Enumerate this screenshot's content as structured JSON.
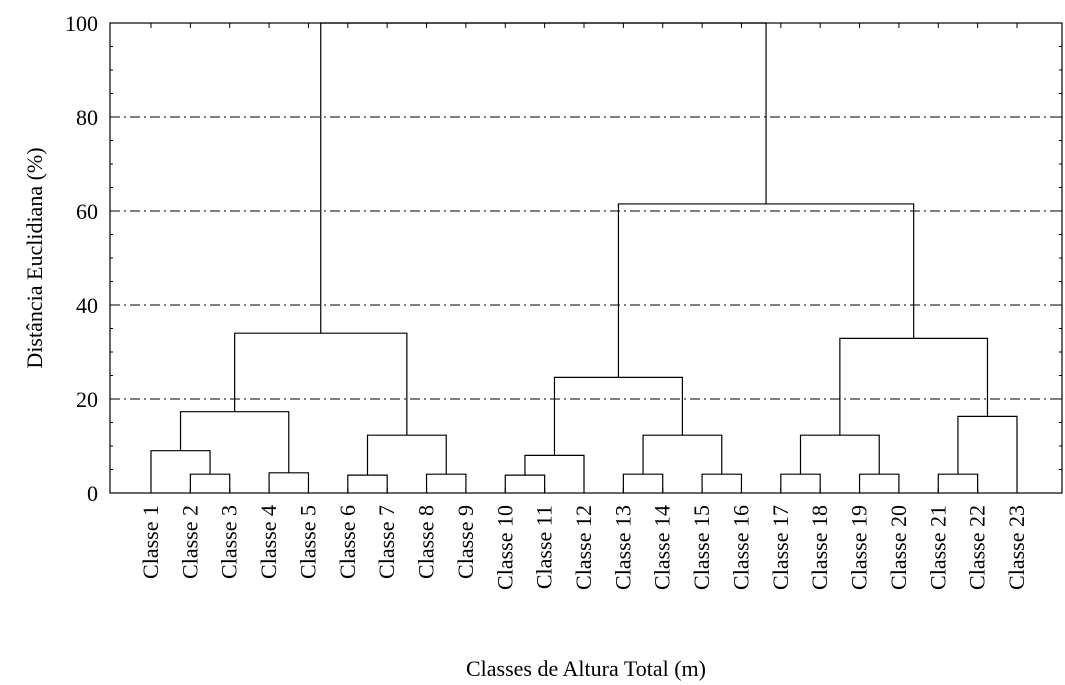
{
  "chart_data": {
    "type": "dendrogram",
    "xlabel": "Classes de Altura Total (m)",
    "ylabel": "Distância Euclidiana (%)",
    "ylim": [
      0,
      100
    ],
    "yticks": [
      0,
      20,
      40,
      60,
      80,
      100
    ],
    "ytick_labels": [
      "0",
      "20",
      "40",
      "60",
      "80",
      "100"
    ],
    "grid": "horizontal dash-dot",
    "leaves": [
      "Classe 1",
      "Classe 2",
      "Classe 3",
      "Classe 4",
      "Classe 5",
      "Classe 6",
      "Classe 7",
      "Classe 8",
      "Classe 9",
      "Classe 10",
      "Classe 11",
      "Classe 12",
      "Classe 13",
      "Classe 14",
      "Classe 15",
      "Classe 16",
      "Classe 17",
      "Classe 18",
      "Classe 19",
      "Classe 20",
      "Classe 21",
      "Classe 22",
      "Classe 23"
    ],
    "merges": [
      {
        "left": "Classe 2",
        "right": "Classe 3",
        "height": 4
      },
      {
        "left": "Classe 1",
        "right": "Classe 2 + Classe 3",
        "height": 9
      },
      {
        "left": "Classe 4",
        "right": "Classe 5",
        "height": 4.3
      },
      {
        "left": "Classe 1-3",
        "right": "Classe 4-5",
        "height": 17.3
      },
      {
        "left": "Classe 6",
        "right": "Classe 7",
        "height": 3.8
      },
      {
        "left": "Classe 8",
        "right": "Classe 9",
        "height": 4
      },
      {
        "left": "Classe 6-7",
        "right": "Classe 8-9",
        "height": 12.3
      },
      {
        "left": "Classe 1-5",
        "right": "Classe 6-9",
        "height": 34
      },
      {
        "left": "Classe 10",
        "right": "Classe 11",
        "height": 3.8
      },
      {
        "left": "Classe 10-11",
        "right": "Classe 12",
        "height": 8
      },
      {
        "left": "Classe 13",
        "right": "Classe 14",
        "height": 4
      },
      {
        "left": "Classe 15",
        "right": "Classe 16",
        "height": 4
      },
      {
        "left": "Classe 13-14",
        "right": "Classe 15-16",
        "height": 12.3
      },
      {
        "left": "Classe 10-12",
        "right": "Classe 13-16",
        "height": 24.6
      },
      {
        "left": "Classe 17",
        "right": "Classe 18",
        "height": 4
      },
      {
        "left": "Classe 19",
        "right": "Classe 20",
        "height": 4
      },
      {
        "left": "Classe 17-18",
        "right": "Classe 19-20",
        "height": 12.3
      },
      {
        "left": "Classe 21",
        "right": "Classe 22",
        "height": 4
      },
      {
        "left": "Classe 21-22",
        "right": "Classe 23",
        "height": 16.3
      },
      {
        "left": "Classe 17-20",
        "right": "Classe 21-23",
        "height": 32.9
      },
      {
        "left": "Classe 10-16",
        "right": "Classe 17-23",
        "height": 61.5
      },
      {
        "left": "Classe 1-9",
        "right": "Classe 10-23",
        "height": 100
      }
    ]
  }
}
